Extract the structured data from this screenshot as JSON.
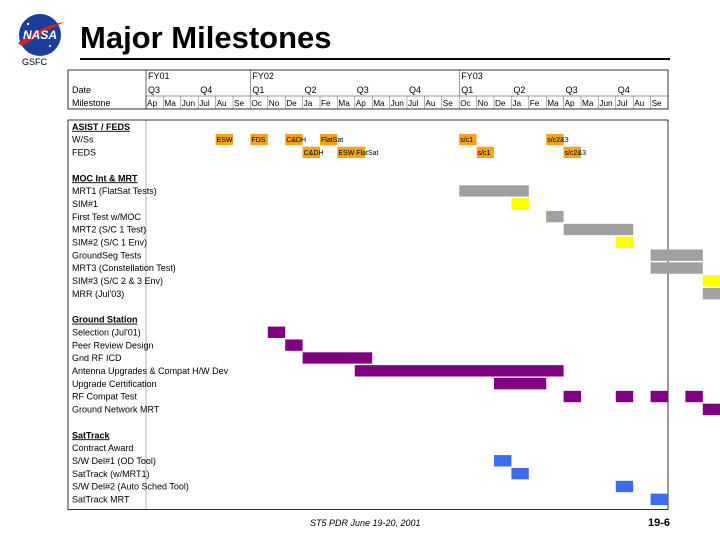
{
  "header": {
    "logo_text": "NASA",
    "org": "GSFC",
    "title": "Major Milestones"
  },
  "footer": {
    "center": "ST5 PDR June 19-20, 2001",
    "page": "19-6"
  },
  "colors": {
    "orange": "#f5a21e",
    "gray": "#a0a0a0",
    "yellow": "#ffff00",
    "purple": "#800080",
    "blue": "#3a6df0"
  },
  "gantt": {
    "corner_labels": [
      "Date",
      "Milestone"
    ],
    "fiscal_years": [
      {
        "label": "FY01",
        "start_col": 0
      },
      {
        "label": "FY02",
        "start_col": 6
      },
      {
        "label": "FY03",
        "start_col": 18
      }
    ],
    "quarters": [
      {
        "label": "Q3",
        "start_col": 0
      },
      {
        "label": "Q4",
        "start_col": 3
      },
      {
        "label": "Q1",
        "start_col": 6
      },
      {
        "label": "Q2",
        "start_col": 9
      },
      {
        "label": "Q3",
        "start_col": 12
      },
      {
        "label": "Q4",
        "start_col": 15
      },
      {
        "label": "Q1",
        "start_col": 18
      },
      {
        "label": "Q2",
        "start_col": 21
      },
      {
        "label": "Q3",
        "start_col": 24
      },
      {
        "label": "Q4",
        "start_col": 27
      }
    ],
    "months": [
      "Ap",
      "Ma",
      "Jun",
      "Jul",
      "Au",
      "Se",
      "Oc",
      "No",
      "De",
      "Ja",
      "Fe",
      "Ma",
      "Ap",
      "Ma",
      "Jun",
      "Jul",
      "Au",
      "Se",
      "Oc",
      "No",
      "De",
      "Ja",
      "Fe",
      "Ma",
      "Ap",
      "Ma",
      "Jun",
      "Jul",
      "Au",
      "Se"
    ],
    "rows": [
      {
        "label": "ASIST / FEDS",
        "heading": true,
        "bars": []
      },
      {
        "label": "W/Ss",
        "bars": [
          {
            "start": 4,
            "end": 5,
            "color": "orange",
            "text": "ESW"
          },
          {
            "start": 6,
            "end": 7,
            "color": "orange",
            "text": "FDS"
          },
          {
            "start": 8,
            "end": 9,
            "color": "orange",
            "text": "C&DH"
          },
          {
            "start": 10,
            "end": 11,
            "color": "orange",
            "text": "FlatSat"
          },
          {
            "start": 18,
            "end": 19,
            "color": "orange",
            "text": "s/c1"
          },
          {
            "start": 23,
            "end": 24,
            "color": "orange",
            "text": "s/c2&3"
          }
        ]
      },
      {
        "label": "FEDS",
        "bars": [
          {
            "start": 9,
            "end": 10,
            "color": "orange",
            "text": "C&DH"
          },
          {
            "start": 11,
            "end": 12.6,
            "color": "orange",
            "text": "ESW FlatSat"
          },
          {
            "start": 19,
            "end": 20,
            "color": "orange",
            "text": "s/c1"
          },
          {
            "start": 24,
            "end": 25,
            "color": "orange",
            "text": "s/c2&3"
          }
        ]
      },
      {
        "label": "",
        "spacer": true,
        "bars": []
      },
      {
        "label": "MOC Int & MRT",
        "heading": true,
        "bars": []
      },
      {
        "label": "MRT1 (FlatSat Tests)",
        "bars": [
          {
            "start": 18,
            "end": 22,
            "color": "gray"
          }
        ]
      },
      {
        "label": "SIM#1",
        "bars": [
          {
            "start": 21,
            "end": 22,
            "color": "yellow"
          }
        ]
      },
      {
        "label": "First Test w/MOC",
        "bars": [
          {
            "start": 23,
            "end": 24,
            "color": "gray"
          }
        ]
      },
      {
        "label": "MRT2 (S/C 1 Test)",
        "bars": [
          {
            "start": 24,
            "end": 28,
            "color": "gray"
          }
        ]
      },
      {
        "label": "SIM#2 (S/C 1 Env)",
        "bars": [
          {
            "start": 27,
            "end": 28,
            "color": "yellow"
          }
        ]
      },
      {
        "label": "GroundSeg Tests",
        "bars": [
          {
            "start": 29,
            "end": 32,
            "color": "gray"
          }
        ]
      },
      {
        "label": "MRT3 (Constellation Test)",
        "bars": [
          {
            "start": 29,
            "end": 32,
            "color": "gray"
          }
        ]
      },
      {
        "label": "SIM#3 (S/C 2 & 3 Env)",
        "bars": [
          {
            "start": 32,
            "end": 33,
            "color": "yellow"
          }
        ]
      },
      {
        "label": "MRR (Jul'03)",
        "bars": [
          {
            "start": 32,
            "end": 33,
            "color": "gray"
          }
        ]
      },
      {
        "label": "",
        "spacer": true,
        "bars": []
      },
      {
        "label": "Ground Station",
        "heading": true,
        "bars": []
      },
      {
        "label": "Selection (Jul'01)",
        "bars": [
          {
            "start": 7,
            "end": 8,
            "color": "purple"
          }
        ]
      },
      {
        "label": "Peer Review Design",
        "bars": [
          {
            "start": 8,
            "end": 9,
            "color": "purple"
          }
        ]
      },
      {
        "label": "Gnd RF ICD",
        "bars": [
          {
            "start": 9,
            "end": 13,
            "color": "purple"
          }
        ]
      },
      {
        "label": "Antenna Upgrades & Compat H/W Dev",
        "bars": [
          {
            "start": 12,
            "end": 24,
            "color": "purple"
          }
        ]
      },
      {
        "label": "Upgrade Certification",
        "bars": [
          {
            "start": 20,
            "end": 23,
            "color": "purple"
          }
        ]
      },
      {
        "label": "RF Compat Test",
        "bars": [
          {
            "start": 24,
            "end": 25,
            "color": "purple"
          },
          {
            "start": 27,
            "end": 28,
            "color": "purple"
          },
          {
            "start": 29,
            "end": 30,
            "color": "purple"
          },
          {
            "start": 31,
            "end": 32,
            "color": "purple"
          }
        ]
      },
      {
        "label": "Ground Network MRT",
        "bars": [
          {
            "start": 32,
            "end": 33,
            "color": "purple"
          }
        ]
      },
      {
        "label": "",
        "spacer": true,
        "bars": []
      },
      {
        "label": "SatTrack",
        "heading": true,
        "bars": []
      },
      {
        "label": "Contract Award",
        "bars": []
      },
      {
        "label": "S/W Del#1 (OD Tool)",
        "bars": [
          {
            "start": 20,
            "end": 21,
            "color": "blue"
          }
        ]
      },
      {
        "label": "SatTrack (w/MRT1)",
        "bars": [
          {
            "start": 21,
            "end": 22,
            "color": "blue"
          }
        ]
      },
      {
        "label": "S/W Del#2 (Auto Sched Tool)",
        "bars": [
          {
            "start": 27,
            "end": 28,
            "color": "blue"
          }
        ]
      },
      {
        "label": "SatTrack MRT",
        "bars": [
          {
            "start": 29,
            "end": 30,
            "color": "blue"
          }
        ]
      }
    ]
  }
}
